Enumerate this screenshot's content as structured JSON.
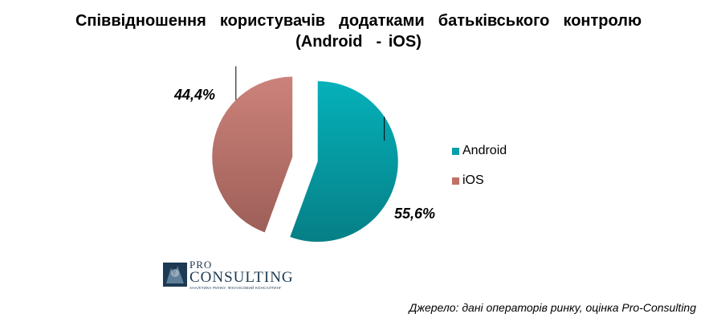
{
  "chart_data": {
    "type": "pie",
    "title": "Співвідношення  користувачів  додатками  батьківського  контролю",
    "subtitle": "(Android  - iOS)",
    "slices": [
      {
        "label": "Android",
        "value": 55.6,
        "display": "55,6%",
        "color": "#05a0a9"
      },
      {
        "label": "iOS",
        "value": 44.4,
        "display": "44,4%",
        "color": "#c07268"
      }
    ],
    "legend_position": "right"
  },
  "logo": {
    "pro": "PRO",
    "consulting": "CONSULTING",
    "tagline": "АНАЛІТИКА РИНКУ. ФІНАНСОВИЙ КОНСАЛТИНГ"
  },
  "source": "Джерело: дані операторів ринку, оцінка Pro-Consulting"
}
